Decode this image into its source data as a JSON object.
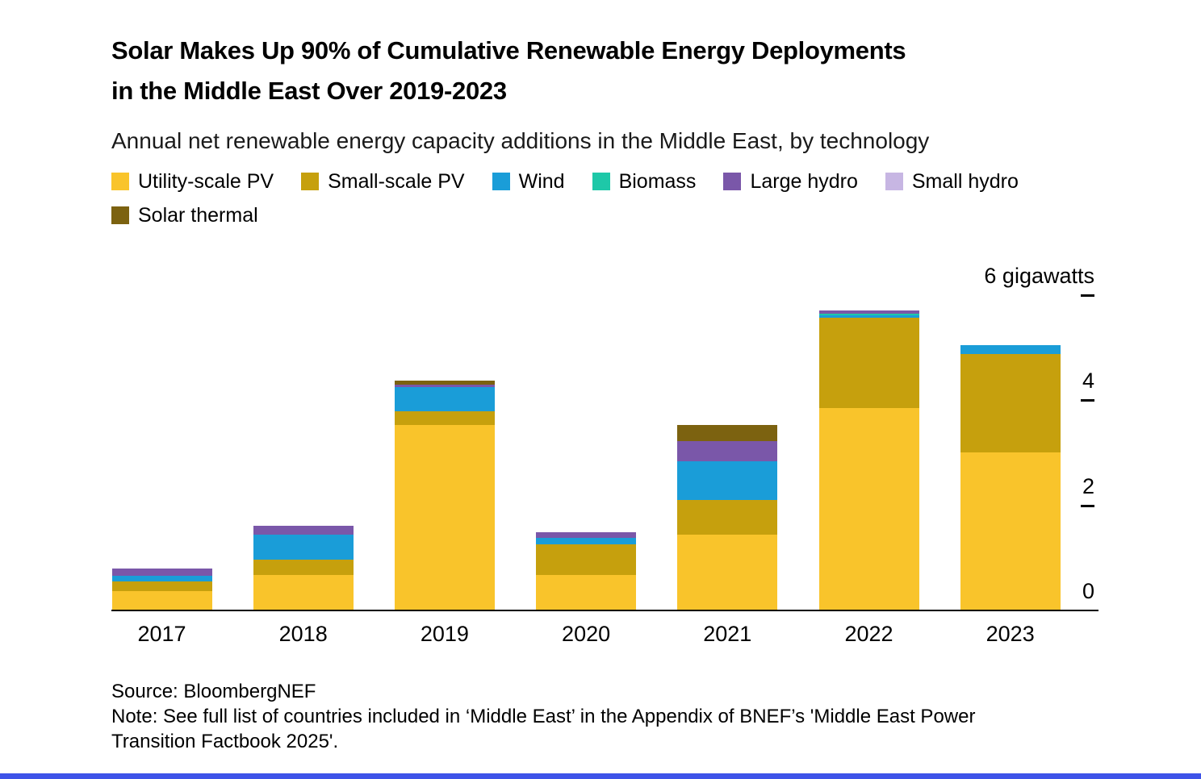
{
  "header": {
    "title": "Solar Makes Up 90% of Cumulative Renewable Energy Deployments in the Middle East Over 2019-2023",
    "subtitle": "Annual net renewable energy capacity additions in the Middle East, by technology"
  },
  "chart_data": {
    "type": "bar",
    "stacked": true,
    "unit": "gigawatts",
    "legend_position": "top",
    "grid": false,
    "categories": [
      "2017",
      "2018",
      "2019",
      "2020",
      "2021",
      "2022",
      "2023"
    ],
    "series": [
      {
        "name": "Utility-scale PV",
        "color": "#F9C42B",
        "values": [
          0.35,
          0.66,
          3.51,
          0.66,
          1.43,
          3.83,
          2.99
        ]
      },
      {
        "name": "Small-scale PV",
        "color": "#C6A00D",
        "values": [
          0.18,
          0.29,
          0.26,
          0.58,
          0.66,
          1.73,
          1.87
        ]
      },
      {
        "name": "Wind",
        "color": "#1A9DD8",
        "values": [
          0.11,
          0.48,
          0.46,
          0.12,
          0.74,
          0.04,
          0.17
        ]
      },
      {
        "name": "Biomass",
        "color": "#1EC8A8",
        "values": [
          0,
          0,
          0,
          0,
          0,
          0.03,
          0
        ]
      },
      {
        "name": "Large hydro",
        "color": "#7A57A9",
        "values": [
          0.14,
          0.17,
          0.05,
          0.11,
          0.38,
          0.06,
          0
        ]
      },
      {
        "name": "Small hydro",
        "color": "#C7B6E3",
        "values": [
          0,
          0,
          0,
          0,
          0,
          0,
          0
        ]
      },
      {
        "name": "Solar thermal",
        "color": "#7C6210",
        "values": [
          0,
          0,
          0.08,
          0,
          0.31,
          0,
          0
        ]
      }
    ],
    "y_axis": {
      "min": 0,
      "max": 6,
      "ticks": [
        {
          "value": 6,
          "label": "6 gigawatts"
        },
        {
          "value": 4,
          "label": "4"
        },
        {
          "value": 2,
          "label": "2"
        },
        {
          "value": 0,
          "label": "0"
        }
      ]
    }
  },
  "footer": {
    "source": "Source: BloombergNEF",
    "note": "Note: See full list of countries included in ‘Middle East’ in the Appendix of BNEF’s 'Middle East Power Transition Factbook 2025'."
  },
  "accent": {
    "bottom_bar_color": "#3E53E8",
    "axis_color": "#000000"
  }
}
